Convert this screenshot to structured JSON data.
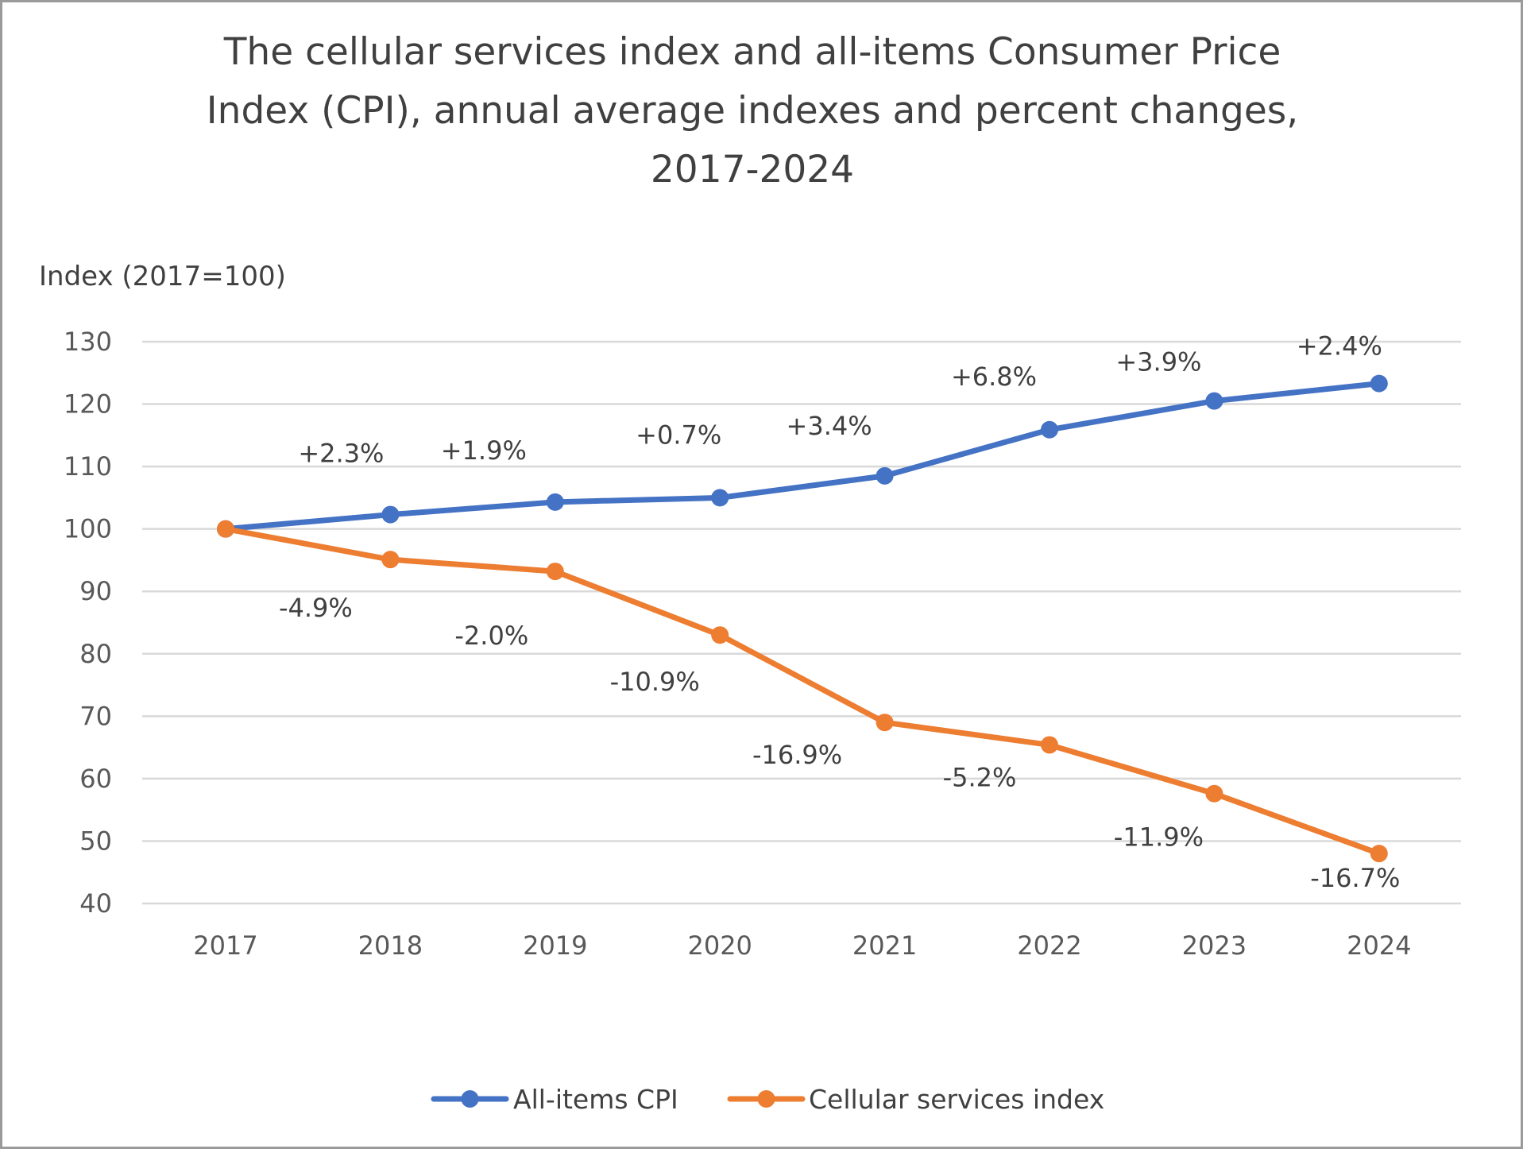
{
  "chart_data": {
    "type": "line",
    "title_lines": [
      "The cellular services index and all-items Consumer Price",
      "Index (CPI), annual average indexes and percent changes,",
      "2017-2024"
    ],
    "ylabel": "Index (2017=100)",
    "xlabel": "",
    "ylim": [
      40,
      130
    ],
    "yticks": [
      40,
      50,
      60,
      70,
      80,
      90,
      100,
      110,
      120,
      130
    ],
    "grid": true,
    "categories": [
      "2017",
      "2018",
      "2019",
      "2020",
      "2021",
      "2022",
      "2023",
      "2024"
    ],
    "legend_position": "bottom",
    "series": [
      {
        "name": "All-items CPI",
        "color": "#4472C4",
        "values": [
          100,
          102.3,
          104.3,
          105.0,
          108.5,
          115.9,
          120.5,
          123.3
        ],
        "labels": [
          "",
          "+2.3%",
          "+1.9%",
          "+0.7%",
          "+3.4%",
          "+6.8%",
          "+3.9%",
          "+2.4%"
        ]
      },
      {
        "name": "Cellular services index",
        "color": "#ED7D31",
        "values": [
          100,
          95.1,
          93.2,
          83.0,
          69.0,
          65.4,
          57.6,
          48.0
        ],
        "labels": [
          "",
          "-4.9%",
          "-2.0%",
          "-10.9%",
          "-16.9%",
          "-5.2%",
          "-11.9%",
          "-16.7%"
        ]
      }
    ]
  }
}
